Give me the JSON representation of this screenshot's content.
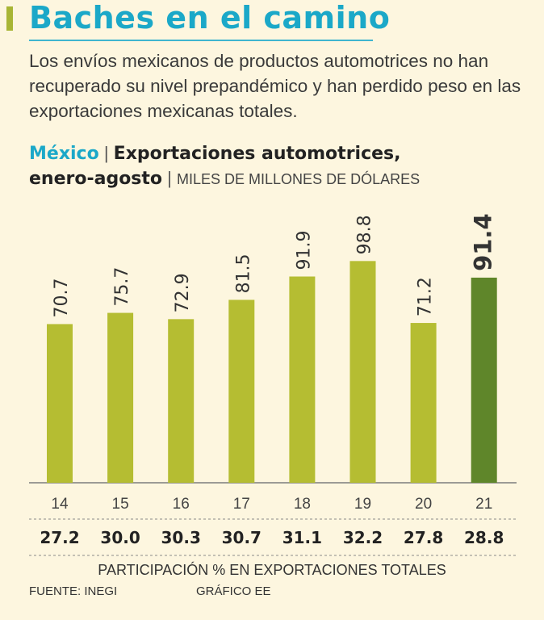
{
  "header": {
    "title": "Baches en el camino",
    "subtitle": "Los envíos mexicanos de productos automotrices no han recuperado su nivel prepandémico y han perdido peso en las exportaciones mexicanas totales."
  },
  "chart_heading": {
    "country": "México",
    "separator": "|",
    "title_line1": "Exportaciones automotrices,",
    "title_line2": "enero-agosto",
    "units": "MILES DE MILLONES DE DÓLARES"
  },
  "chart_data": {
    "type": "bar",
    "categories": [
      "14",
      "15",
      "16",
      "17",
      "18",
      "19",
      "20",
      "21"
    ],
    "values": [
      70.7,
      75.7,
      72.9,
      81.5,
      91.9,
      98.8,
      71.2,
      91.4
    ],
    "value_labels": [
      "70.7",
      "75.7",
      "72.9",
      "81.5",
      "91.9",
      "98.8",
      "71.2",
      "91.4"
    ],
    "highlight_index": 7,
    "ylim": [
      0,
      100
    ],
    "grid": false,
    "participation": [
      "27.2",
      "30.0",
      "30.3",
      "30.7",
      "31.1",
      "32.2",
      "27.8",
      "28.8"
    ],
    "participation_label": "PARTICIPACIÓN % EN EXPORTACIONES TOTALES"
  },
  "colors": {
    "bar": "#b5bd32",
    "bar_highlight": "#5f862a",
    "title": "#1ba8c8",
    "background": "#fdf6df"
  },
  "footer": {
    "source": "FUENTE: INEGI",
    "credit": "GRÁFICO EE"
  }
}
